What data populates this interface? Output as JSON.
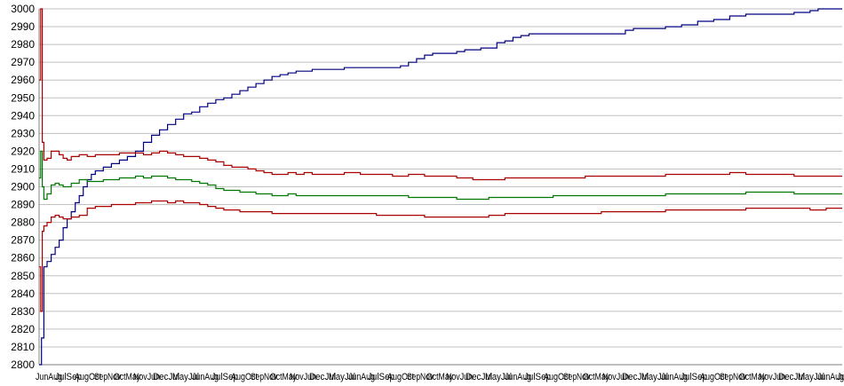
{
  "chart_data": {
    "type": "line",
    "title": "",
    "xlabel": "",
    "ylabel": "",
    "ylim": [
      2800,
      3000
    ],
    "y_ticks": [
      "2800",
      "2810",
      "2820",
      "2830",
      "2840",
      "2850",
      "2860",
      "2870",
      "2880",
      "2890",
      "2900",
      "2910",
      "2920",
      "2930",
      "2940",
      "2950",
      "2960",
      "2970",
      "2980",
      "2990",
      "3000"
    ],
    "grid": "horizontal",
    "legend": "none",
    "x_tick_labels_note": "dense overlapping date-like tick labels along the x axis, illegible",
    "x_range": [
      0,
      100
    ],
    "series": [
      {
        "color": "#000080",
        "points": [
          [
            0,
            2800
          ],
          [
            0.3,
            2815
          ],
          [
            0.6,
            2855
          ],
          [
            1,
            2858
          ],
          [
            1.5,
            2862
          ],
          [
            2,
            2866
          ],
          [
            2.5,
            2870
          ],
          [
            3,
            2877
          ],
          [
            3.5,
            2882
          ],
          [
            4,
            2886
          ],
          [
            4.5,
            2891
          ],
          [
            5,
            2895
          ],
          [
            5.5,
            2900
          ],
          [
            6,
            2904
          ],
          [
            6.5,
            2907
          ],
          [
            7,
            2909
          ],
          [
            8,
            2911
          ],
          [
            9,
            2913
          ],
          [
            10,
            2915
          ],
          [
            11,
            2917
          ],
          [
            12,
            2920
          ],
          [
            13,
            2925
          ],
          [
            14,
            2929
          ],
          [
            15,
            2932
          ],
          [
            16,
            2935
          ],
          [
            17,
            2938
          ],
          [
            18,
            2941
          ],
          [
            19,
            2942
          ],
          [
            20,
            2945
          ],
          [
            21,
            2947
          ],
          [
            22,
            2949
          ],
          [
            23,
            2950
          ],
          [
            24,
            2952
          ],
          [
            25,
            2954
          ],
          [
            26,
            2956
          ],
          [
            27,
            2958
          ],
          [
            28,
            2960
          ],
          [
            29,
            2962
          ],
          [
            30,
            2963
          ],
          [
            31,
            2964
          ],
          [
            32,
            2965
          ],
          [
            34,
            2966
          ],
          [
            36,
            2966
          ],
          [
            38,
            2967
          ],
          [
            40,
            2967
          ],
          [
            45,
            2968
          ],
          [
            46,
            2970
          ],
          [
            47,
            2972
          ],
          [
            48,
            2974
          ],
          [
            49,
            2975
          ],
          [
            51,
            2975
          ],
          [
            52,
            2976
          ],
          [
            53,
            2977
          ],
          [
            55,
            2978
          ],
          [
            57,
            2981
          ],
          [
            58,
            2982
          ],
          [
            59,
            2984
          ],
          [
            60,
            2985
          ],
          [
            61,
            2986
          ],
          [
            63,
            2986
          ],
          [
            66,
            2986
          ],
          [
            69,
            2986
          ],
          [
            72,
            2986
          ],
          [
            73,
            2988
          ],
          [
            74,
            2989
          ],
          [
            76,
            2989
          ],
          [
            78,
            2990
          ],
          [
            80,
            2991
          ],
          [
            82,
            2993
          ],
          [
            84,
            2994
          ],
          [
            86,
            2996
          ],
          [
            88,
            2997
          ],
          [
            92,
            2997
          ],
          [
            94,
            2998
          ],
          [
            96,
            2999
          ],
          [
            97,
            3000
          ],
          [
            100,
            3000
          ]
        ]
      },
      {
        "color": "#aa0000",
        "points": [
          [
            0,
            2960
          ],
          [
            0.2,
            3000
          ],
          [
            0.4,
            2925
          ],
          [
            0.6,
            2915
          ],
          [
            1,
            2916
          ],
          [
            1.5,
            2920
          ],
          [
            2,
            2920
          ],
          [
            2.5,
            2918
          ],
          [
            3,
            2916
          ],
          [
            3.5,
            2915
          ],
          [
            4,
            2917
          ],
          [
            5,
            2918
          ],
          [
            6,
            2917
          ],
          [
            7,
            2918
          ],
          [
            8,
            2918
          ],
          [
            9,
            2918
          ],
          [
            10,
            2919
          ],
          [
            11,
            2919
          ],
          [
            12,
            2919
          ],
          [
            13,
            2918
          ],
          [
            14,
            2919
          ],
          [
            15,
            2920
          ],
          [
            16,
            2919
          ],
          [
            17,
            2918
          ],
          [
            18,
            2917
          ],
          [
            19,
            2917
          ],
          [
            20,
            2916
          ],
          [
            21,
            2915
          ],
          [
            22,
            2914
          ],
          [
            23,
            2912
          ],
          [
            24,
            2911
          ],
          [
            25,
            2911
          ],
          [
            26,
            2910
          ],
          [
            27,
            2909
          ],
          [
            28,
            2908
          ],
          [
            29,
            2907
          ],
          [
            30,
            2907
          ],
          [
            31,
            2908
          ],
          [
            32,
            2907
          ],
          [
            33,
            2908
          ],
          [
            34,
            2907
          ],
          [
            35,
            2907
          ],
          [
            36,
            2907
          ],
          [
            37,
            2907
          ],
          [
            38,
            2908
          ],
          [
            40,
            2907
          ],
          [
            42,
            2907
          ],
          [
            44,
            2906
          ],
          [
            46,
            2907
          ],
          [
            48,
            2906
          ],
          [
            50,
            2906
          ],
          [
            52,
            2905
          ],
          [
            54,
            2904
          ],
          [
            56,
            2904
          ],
          [
            58,
            2905
          ],
          [
            60,
            2905
          ],
          [
            62,
            2905
          ],
          [
            64,
            2905
          ],
          [
            66,
            2905
          ],
          [
            68,
            2906
          ],
          [
            70,
            2906
          ],
          [
            72,
            2906
          ],
          [
            74,
            2906
          ],
          [
            76,
            2906
          ],
          [
            78,
            2907
          ],
          [
            80,
            2907
          ],
          [
            82,
            2907
          ],
          [
            84,
            2907
          ],
          [
            86,
            2908
          ],
          [
            88,
            2907
          ],
          [
            90,
            2907
          ],
          [
            92,
            2907
          ],
          [
            94,
            2906
          ],
          [
            96,
            2906
          ],
          [
            98,
            2906
          ],
          [
            100,
            2906
          ]
        ]
      },
      {
        "color": "#007700",
        "points": [
          [
            0,
            2905
          ],
          [
            0.2,
            2920
          ],
          [
            0.4,
            2900
          ],
          [
            0.6,
            2893
          ],
          [
            1,
            2896
          ],
          [
            1.5,
            2901
          ],
          [
            2,
            2902
          ],
          [
            2.5,
            2901
          ],
          [
            3,
            2900
          ],
          [
            4,
            2902
          ],
          [
            5,
            2904
          ],
          [
            6,
            2903
          ],
          [
            7,
            2903
          ],
          [
            8,
            2904
          ],
          [
            9,
            2904
          ],
          [
            10,
            2905
          ],
          [
            11,
            2905
          ],
          [
            12,
            2906
          ],
          [
            13,
            2905
          ],
          [
            14,
            2906
          ],
          [
            15,
            2906
          ],
          [
            16,
            2905
          ],
          [
            17,
            2904
          ],
          [
            18,
            2904
          ],
          [
            19,
            2903
          ],
          [
            20,
            2902
          ],
          [
            21,
            2901
          ],
          [
            22,
            2899
          ],
          [
            23,
            2898
          ],
          [
            24,
            2898
          ],
          [
            25,
            2897
          ],
          [
            26,
            2897
          ],
          [
            27,
            2896
          ],
          [
            28,
            2896
          ],
          [
            29,
            2895
          ],
          [
            30,
            2895
          ],
          [
            31,
            2896
          ],
          [
            32,
            2895
          ],
          [
            34,
            2895
          ],
          [
            36,
            2895
          ],
          [
            38,
            2895
          ],
          [
            40,
            2895
          ],
          [
            42,
            2895
          ],
          [
            44,
            2895
          ],
          [
            46,
            2894
          ],
          [
            48,
            2894
          ],
          [
            50,
            2894
          ],
          [
            52,
            2893
          ],
          [
            54,
            2893
          ],
          [
            56,
            2894
          ],
          [
            58,
            2894
          ],
          [
            60,
            2894
          ],
          [
            62,
            2894
          ],
          [
            64,
            2895
          ],
          [
            66,
            2895
          ],
          [
            68,
            2895
          ],
          [
            70,
            2895
          ],
          [
            72,
            2895
          ],
          [
            74,
            2895
          ],
          [
            76,
            2895
          ],
          [
            78,
            2896
          ],
          [
            80,
            2896
          ],
          [
            82,
            2896
          ],
          [
            84,
            2896
          ],
          [
            86,
            2896
          ],
          [
            88,
            2897
          ],
          [
            90,
            2897
          ],
          [
            92,
            2897
          ],
          [
            94,
            2896
          ],
          [
            96,
            2896
          ],
          [
            98,
            2896
          ],
          [
            100,
            2896
          ]
        ]
      },
      {
        "color": "#aa0000",
        "points": [
          [
            0,
            2855
          ],
          [
            0.2,
            2830
          ],
          [
            0.4,
            2875
          ],
          [
            0.6,
            2878
          ],
          [
            1,
            2880
          ],
          [
            1.5,
            2883
          ],
          [
            2,
            2884
          ],
          [
            2.5,
            2883
          ],
          [
            3,
            2882
          ],
          [
            4,
            2883
          ],
          [
            5,
            2884
          ],
          [
            6,
            2888
          ],
          [
            7,
            2889
          ],
          [
            8,
            2889
          ],
          [
            9,
            2890
          ],
          [
            10,
            2890
          ],
          [
            11,
            2890
          ],
          [
            12,
            2891
          ],
          [
            13,
            2891
          ],
          [
            14,
            2892
          ],
          [
            15,
            2892
          ],
          [
            16,
            2891
          ],
          [
            17,
            2892
          ],
          [
            18,
            2891
          ],
          [
            19,
            2891
          ],
          [
            20,
            2890
          ],
          [
            21,
            2889
          ],
          [
            22,
            2888
          ],
          [
            23,
            2887
          ],
          [
            24,
            2887
          ],
          [
            25,
            2886
          ],
          [
            26,
            2886
          ],
          [
            27,
            2886
          ],
          [
            28,
            2886
          ],
          [
            29,
            2885
          ],
          [
            30,
            2885
          ],
          [
            31,
            2885
          ],
          [
            32,
            2885
          ],
          [
            34,
            2885
          ],
          [
            36,
            2885
          ],
          [
            38,
            2885
          ],
          [
            40,
            2885
          ],
          [
            42,
            2884
          ],
          [
            44,
            2884
          ],
          [
            46,
            2884
          ],
          [
            48,
            2883
          ],
          [
            50,
            2883
          ],
          [
            52,
            2883
          ],
          [
            54,
            2883
          ],
          [
            56,
            2884
          ],
          [
            58,
            2885
          ],
          [
            60,
            2885
          ],
          [
            62,
            2885
          ],
          [
            64,
            2885
          ],
          [
            66,
            2885
          ],
          [
            68,
            2885
          ],
          [
            70,
            2886
          ],
          [
            72,
            2886
          ],
          [
            74,
            2886
          ],
          [
            76,
            2886
          ],
          [
            78,
            2887
          ],
          [
            80,
            2887
          ],
          [
            82,
            2887
          ],
          [
            84,
            2887
          ],
          [
            86,
            2887
          ],
          [
            88,
            2888
          ],
          [
            90,
            2888
          ],
          [
            92,
            2888
          ],
          [
            94,
            2888
          ],
          [
            96,
            2887
          ],
          [
            98,
            2888
          ],
          [
            100,
            2888
          ]
        ]
      }
    ]
  }
}
